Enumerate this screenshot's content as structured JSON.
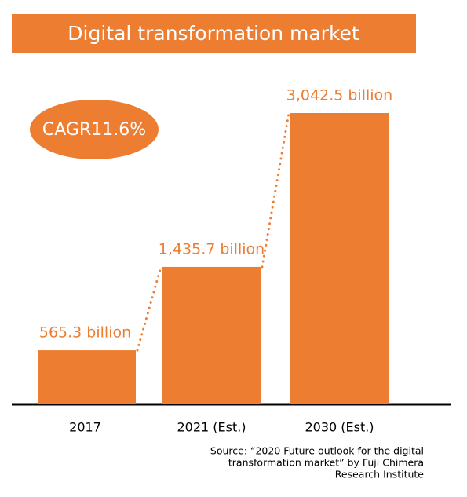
{
  "chart_data": {
    "type": "bar",
    "title": "Digital transformation market",
    "categories": [
      "2017",
      "2021 (Est.)",
      "2030 (Est.)"
    ],
    "values": [
      565.3,
      1435.7,
      3042.5
    ],
    "value_labels": [
      "565.3 billion",
      "1,435.7 billion",
      "3,042.5 billion"
    ],
    "color": "#ED7D31",
    "annotation": "CAGR11.6%",
    "source": [
      "Source: “2020 Future outlook for the digital",
      "transformation market” by Fuji Chimera",
      "Research Institute"
    ]
  }
}
